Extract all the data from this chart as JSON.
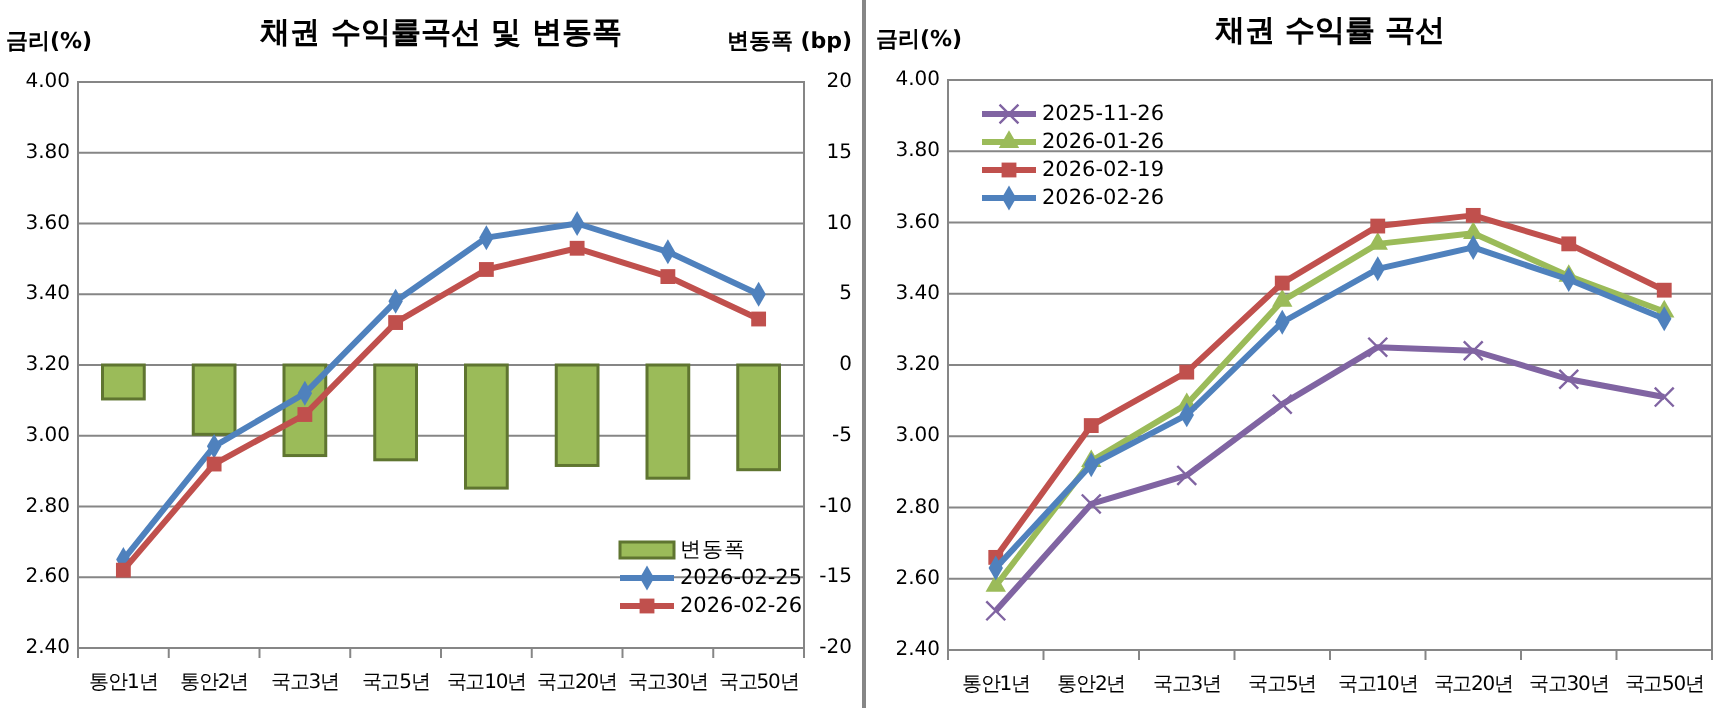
{
  "chart_data": [
    {
      "type": "bar",
      "title": "채권 수익률곡선 및 변동폭",
      "ylabel": "금리(%)",
      "y2label": "변동폭 (bp)",
      "categories": [
        "통안1년",
        "통안2년",
        "국고3년",
        "국고5년",
        "국고10년",
        "국고20년",
        "국고30년",
        "국고50년"
      ],
      "series": [
        {
          "name": "변동폭",
          "axis": "y2",
          "color": "#9bbb59",
          "values": [
            -2.4,
            -4.9,
            -6.4,
            -6.7,
            -8.7,
            -7.1,
            -8.0,
            -7.4
          ]
        },
        {
          "name": "2026-02-25",
          "type": "line",
          "color": "#4f81bd",
          "marker": "diamond",
          "values": [
            2.65,
            2.97,
            3.12,
            3.38,
            3.56,
            3.6,
            3.52,
            3.4
          ]
        },
        {
          "name": "2026-02-26",
          "type": "line",
          "color": "#c0504d",
          "marker": "square",
          "values": [
            2.62,
            2.92,
            3.06,
            3.32,
            3.47,
            3.53,
            3.45,
            3.33
          ]
        }
      ],
      "ylim": [
        2.4,
        4.0
      ],
      "yticks": [
        {
          "value": 2.4,
          "label": "2.40"
        },
        {
          "value": 2.6,
          "label": "2.60"
        },
        {
          "value": 2.8,
          "label": "2.80"
        },
        {
          "value": 3.0,
          "label": "3.00"
        },
        {
          "value": 3.2,
          "label": "3.20"
        },
        {
          "value": 3.4,
          "label": "3.40"
        },
        {
          "value": 3.6,
          "label": "3.60"
        },
        {
          "value": 3.8,
          "label": "3.80"
        },
        {
          "value": 4.0,
          "label": "4.00"
        }
      ],
      "y2lim": [
        -20,
        20
      ],
      "y2ticks": [
        -20,
        -15,
        -10,
        -5,
        0,
        5,
        10,
        15,
        20
      ],
      "grid": "y",
      "legend": "bottom right"
    },
    {
      "type": "line",
      "title": "채권 수익률 곡선",
      "ylabel": "금리(%)",
      "categories": [
        "통안1년",
        "통안2년",
        "국고3년",
        "국고5년",
        "국고10년",
        "국고20년",
        "국고30년",
        "국고50년"
      ],
      "series": [
        {
          "name": "2025-11-26",
          "color": "#8064a2",
          "marker": "cross",
          "values": [
            2.51,
            2.81,
            2.89,
            3.09,
            3.25,
            3.24,
            3.16,
            3.11
          ]
        },
        {
          "name": "2026-01-26",
          "color": "#9bbb59",
          "marker": "triangle",
          "values": [
            2.58,
            2.93,
            3.09,
            3.38,
            3.54,
            3.57,
            3.45,
            3.35
          ]
        },
        {
          "name": "2026-02-19",
          "color": "#c0504d",
          "marker": "square",
          "values": [
            2.66,
            3.03,
            3.18,
            3.43,
            3.59,
            3.62,
            3.54,
            3.41
          ]
        },
        {
          "name": "2026-02-26",
          "color": "#4f81bd",
          "marker": "diamond",
          "values": [
            2.63,
            2.92,
            3.06,
            3.32,
            3.47,
            3.53,
            3.44,
            3.33
          ]
        }
      ],
      "ylim": [
        2.4,
        4.0
      ],
      "yticks": [
        {
          "value": 2.4,
          "label": "2.40"
        },
        {
          "value": 2.6,
          "label": "2.60"
        },
        {
          "value": 2.8,
          "label": "2.80"
        },
        {
          "value": 3.0,
          "label": "3.00"
        },
        {
          "value": 3.2,
          "label": "3.20"
        },
        {
          "value": 3.4,
          "label": "3.40"
        },
        {
          "value": 3.6,
          "label": "3.60"
        },
        {
          "value": 3.8,
          "label": "3.80"
        },
        {
          "value": 4.0,
          "label": "4.00"
        }
      ],
      "grid": "y",
      "legend": "top left"
    }
  ]
}
